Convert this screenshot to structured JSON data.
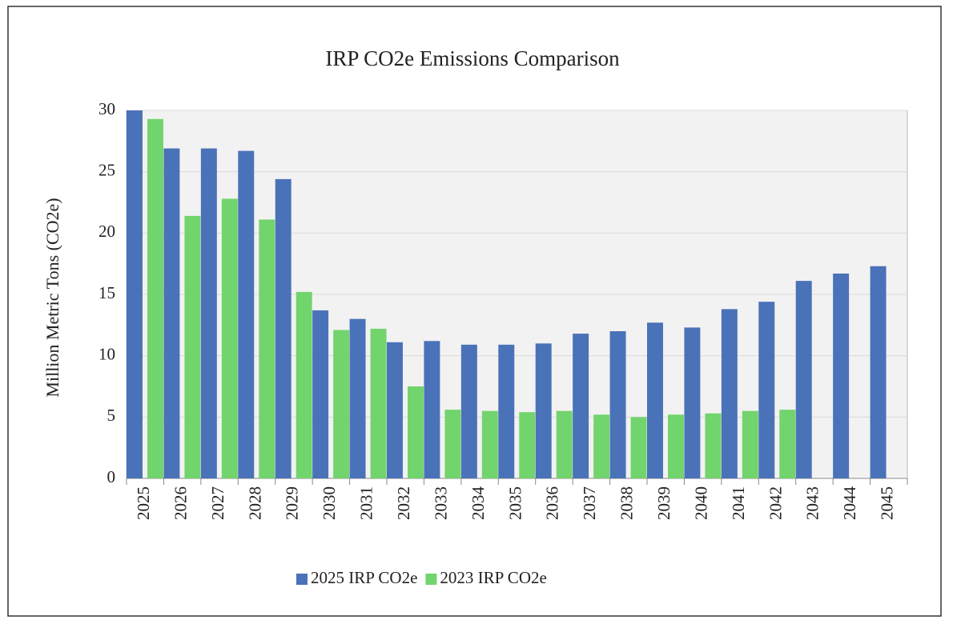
{
  "chart_data": {
    "type": "bar",
    "title": "IRP CO2e Emissions Comparison",
    "y_label": "Million Metric Tons (CO2e)",
    "categories": [
      "2025",
      "2026",
      "2027",
      "2028",
      "2029",
      "2030",
      "2031",
      "2032",
      "2033",
      "2034",
      "2035",
      "2036",
      "2037",
      "2038",
      "2039",
      "2040",
      "2041",
      "2042",
      "2043",
      "2044",
      "2045"
    ],
    "series": [
      {
        "name": "2025 IRP CO2e",
        "color": "#4a72b8",
        "values": [
          30,
          26.9,
          26.9,
          26.7,
          24.4,
          13.7,
          13.0,
          11.1,
          11.2,
          10.9,
          10.9,
          11.0,
          11.8,
          12.0,
          12.7,
          12.3,
          13.8,
          14.4,
          16.1,
          16.7,
          17.3
        ]
      },
      {
        "name": "2023 IRP CO2e",
        "color": "#72d46c",
        "values": [
          29.3,
          21.4,
          22.8,
          21.1,
          15.2,
          12.1,
          12.2,
          7.5,
          5.6,
          5.5,
          5.4,
          5.5,
          5.2,
          5.0,
          5.2,
          5.3,
          5.5,
          5.6,
          null,
          null,
          null
        ]
      }
    ],
    "ylim": [
      0,
      30
    ],
    "yticks": [
      0,
      5,
      10,
      15,
      20,
      25,
      30
    ],
    "grid": true,
    "legend": "bottom"
  }
}
